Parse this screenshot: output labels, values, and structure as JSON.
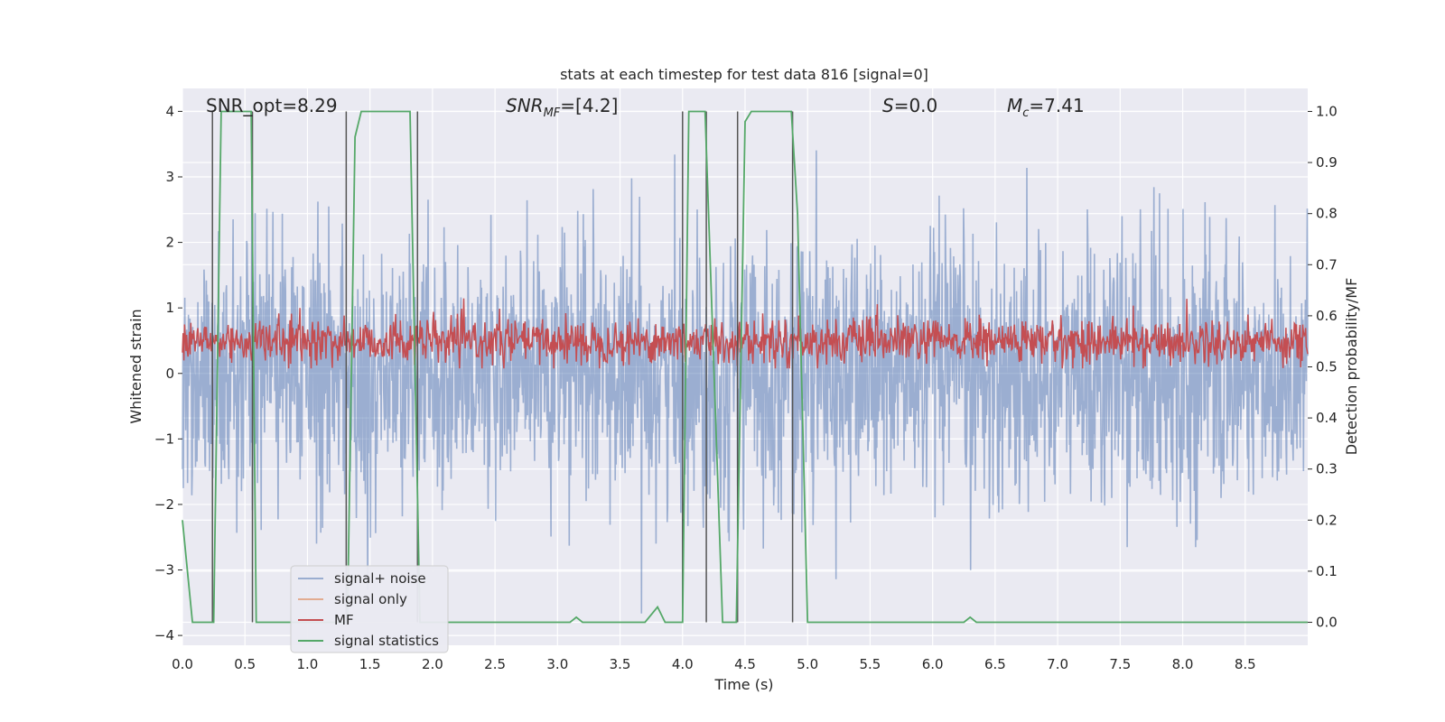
{
  "chart_data": {
    "type": "line",
    "title": "stats at each timestep for test data 816 [signal=0]",
    "xlabel": "Time (s)",
    "ylabel": "Whitened strain",
    "y2label": "Detection probability/MF",
    "xlim": [
      0,
      9.0
    ],
    "ylim": [
      -4.15,
      4.35
    ],
    "y2lim": [
      -0.045,
      1.045
    ],
    "x_ticks": [
      "0.0",
      "0.5",
      "1.0",
      "1.5",
      "2.0",
      "2.5",
      "3.0",
      "3.5",
      "4.0",
      "4.5",
      "5.0",
      "5.5",
      "6.0",
      "6.5",
      "7.0",
      "7.5",
      "8.0",
      "8.5"
    ],
    "y_ticks": [
      "4",
      "3",
      "2",
      "1",
      "0",
      "−1",
      "−2",
      "−3",
      "−4"
    ],
    "y2_ticks": [
      "1.0",
      "0.9",
      "0.8",
      "0.7",
      "0.6",
      "0.5",
      "0.4",
      "0.3",
      "0.2",
      "0.1",
      "0.0"
    ],
    "grid": true,
    "legend_position": "lower-left",
    "annotations": {
      "snr_opt": "SNR_opt=8.29",
      "snr_mf_main": "SNR",
      "snr_mf_sub": "MF",
      "snr_mf_val": "=[4.2]",
      "s_main": "S",
      "s_val": "=0.0",
      "mc_main": "M",
      "mc_sub": "c",
      "mc_val": "=7.41"
    },
    "series": [
      {
        "name": "signal+ noise",
        "color": "#4c72b0",
        "description_values": "noise fluctuating approx between -3.5 and 3.5"
      },
      {
        "name": "signal only",
        "color": "#dd8452",
        "values": []
      },
      {
        "name": "MF",
        "color": "#c44e52",
        "axis": "right",
        "range_approx": [
          0.5,
          0.6
        ]
      },
      {
        "name": "signal statistics",
        "color": "#55a868",
        "axis": "right",
        "points": [
          [
            0.0,
            0.2
          ],
          [
            0.08,
            0.0
          ],
          [
            0.25,
            0.0
          ],
          [
            0.31,
            1.0
          ],
          [
            0.55,
            1.0
          ],
          [
            0.59,
            0.0
          ],
          [
            1.32,
            0.0
          ],
          [
            1.38,
            0.95
          ],
          [
            1.43,
            1.0
          ],
          [
            1.82,
            1.0
          ],
          [
            1.9,
            0.0
          ],
          [
            2.2,
            0.0
          ],
          [
            2.8,
            0.0
          ],
          [
            3.1,
            0.0
          ],
          [
            3.15,
            0.01
          ],
          [
            3.2,
            0.0
          ],
          [
            3.7,
            0.0
          ],
          [
            3.8,
            0.03
          ],
          [
            3.86,
            0.0
          ],
          [
            4.0,
            0.0
          ],
          [
            4.05,
            1.0
          ],
          [
            4.18,
            1.0
          ],
          [
            4.32,
            0.0
          ],
          [
            4.43,
            0.0
          ],
          [
            4.5,
            0.98
          ],
          [
            4.55,
            1.0
          ],
          [
            4.87,
            1.0
          ],
          [
            4.92,
            0.8
          ],
          [
            5.0,
            0.0
          ],
          [
            5.1,
            0.0
          ],
          [
            6.25,
            0.0
          ],
          [
            6.3,
            0.01
          ],
          [
            6.35,
            0.0
          ],
          [
            9.0,
            0.0
          ]
        ]
      }
    ],
    "vertical_lines_x": [
      0.24,
      0.56,
      1.31,
      1.88,
      4.0,
      4.19,
      4.44,
      4.88
    ]
  }
}
